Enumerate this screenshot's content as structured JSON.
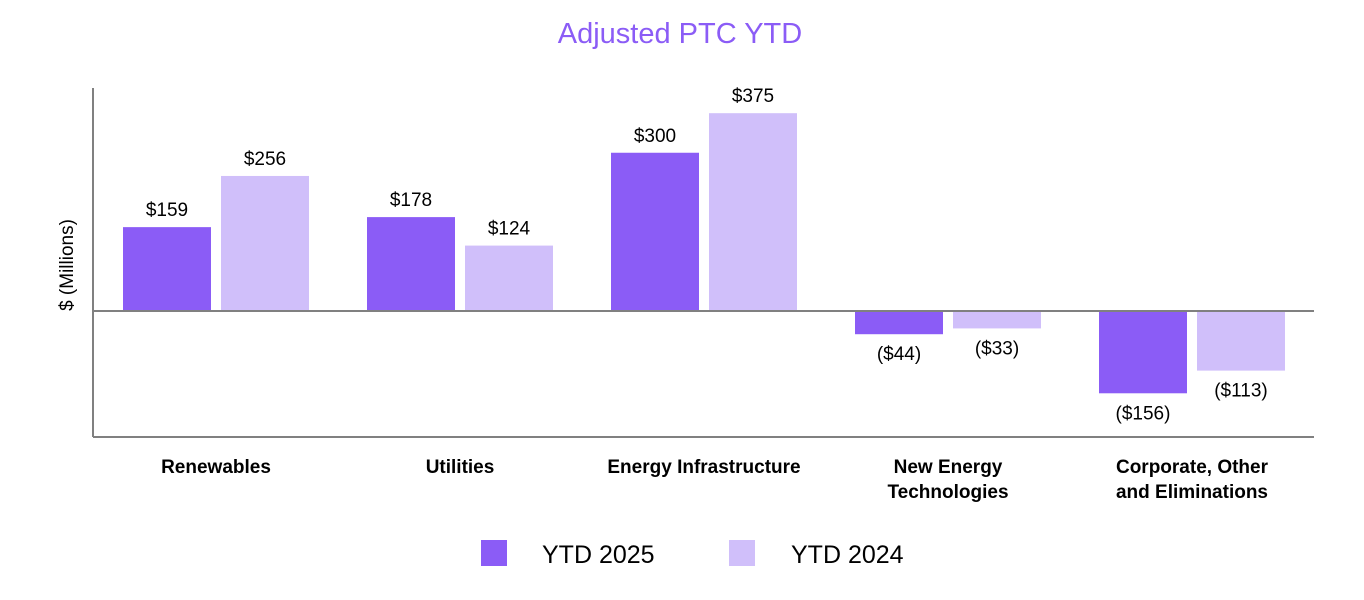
{
  "chart_data": {
    "type": "bar",
    "title": "Adjusted PTC YTD",
    "xlabel": "",
    "ylabel": "$ (Millions)",
    "categories": [
      [
        "Renewables"
      ],
      [
        "Utilities"
      ],
      [
        "Energy Infrastructure"
      ],
      [
        "New Energy",
        "Technologies"
      ],
      [
        "Corporate, Other",
        "and Eliminations"
      ]
    ],
    "series": [
      {
        "name": "YTD 2025",
        "color": "#8b5cf6",
        "values": [
          159,
          178,
          300,
          -44,
          -156
        ],
        "labels": [
          "$159",
          "$178",
          "$300",
          "($44)",
          "($156)"
        ]
      },
      {
        "name": "YTD 2024",
        "color": "#d0bffa",
        "values": [
          256,
          124,
          375,
          -33,
          -113
        ],
        "labels": [
          "$256",
          "$124",
          "$375",
          "($33)",
          "($113)"
        ]
      }
    ],
    "ylim": [
      -240,
      425
    ],
    "grid": false,
    "legend_position": "bottom-center"
  }
}
